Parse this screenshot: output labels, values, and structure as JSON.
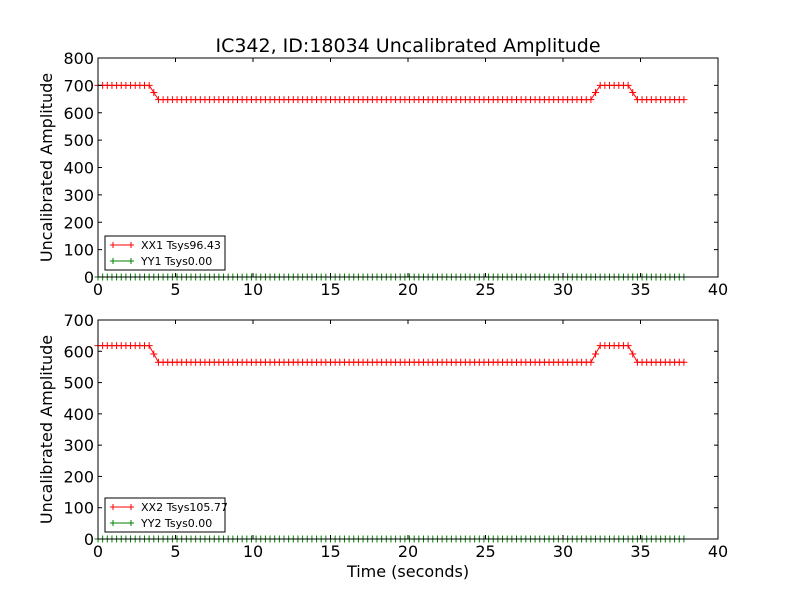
{
  "chart_data": [
    {
      "type": "line",
      "title": "IC342, ID:18034 Uncalibrated Amplitude",
      "xlabel": "",
      "ylabel": "Uncalibrated Amplitude",
      "xlim": [
        0,
        40
      ],
      "ylim": [
        0,
        800
      ],
      "xticks": [
        0,
        5,
        10,
        15,
        20,
        25,
        30,
        35,
        40
      ],
      "yticks": [
        0,
        100,
        200,
        300,
        400,
        500,
        600,
        700,
        800
      ],
      "grid": false,
      "legend_position": "lower-left",
      "sample_interval": 0.3,
      "x_start": 0,
      "x_end": 37.9,
      "series": [
        {
          "name": "XX1 Tsys96.43",
          "color": "#ff0000",
          "marker": "+",
          "levels": [
            [
              0,
              700
            ],
            [
              3.3,
              700
            ],
            [
              3.9,
              648
            ],
            [
              31.8,
              648
            ],
            [
              32.4,
              700
            ],
            [
              34.2,
              700
            ],
            [
              34.8,
              648
            ],
            [
              37.9,
              648
            ]
          ]
        },
        {
          "name": "YY1 Tsys0.00",
          "color": "#008000",
          "marker": "+",
          "levels": [
            [
              0,
              0
            ],
            [
              37.9,
              0
            ]
          ]
        }
      ]
    },
    {
      "type": "line",
      "title": "",
      "xlabel": "Time (seconds)",
      "ylabel": "Uncalibrated Amplitude",
      "xlim": [
        0,
        40
      ],
      "ylim": [
        0,
        700
      ],
      "xticks": [
        0,
        5,
        10,
        15,
        20,
        25,
        30,
        35,
        40
      ],
      "yticks": [
        0,
        100,
        200,
        300,
        400,
        500,
        600,
        700
      ],
      "grid": false,
      "legend_position": "lower-left",
      "sample_interval": 0.3,
      "x_start": 0,
      "x_end": 37.9,
      "series": [
        {
          "name": "XX2 Tsys105.77",
          "color": "#ff0000",
          "marker": "+",
          "levels": [
            [
              0,
              618
            ],
            [
              3.3,
              618
            ],
            [
              3.9,
              565
            ],
            [
              31.8,
              565
            ],
            [
              32.4,
              618
            ],
            [
              34.2,
              618
            ],
            [
              34.8,
              565
            ],
            [
              37.9,
              565
            ]
          ]
        },
        {
          "name": "YY2 Tsys0.00",
          "color": "#008000",
          "marker": "+",
          "levels": [
            [
              0,
              0
            ],
            [
              37.9,
              0
            ]
          ]
        }
      ]
    }
  ]
}
